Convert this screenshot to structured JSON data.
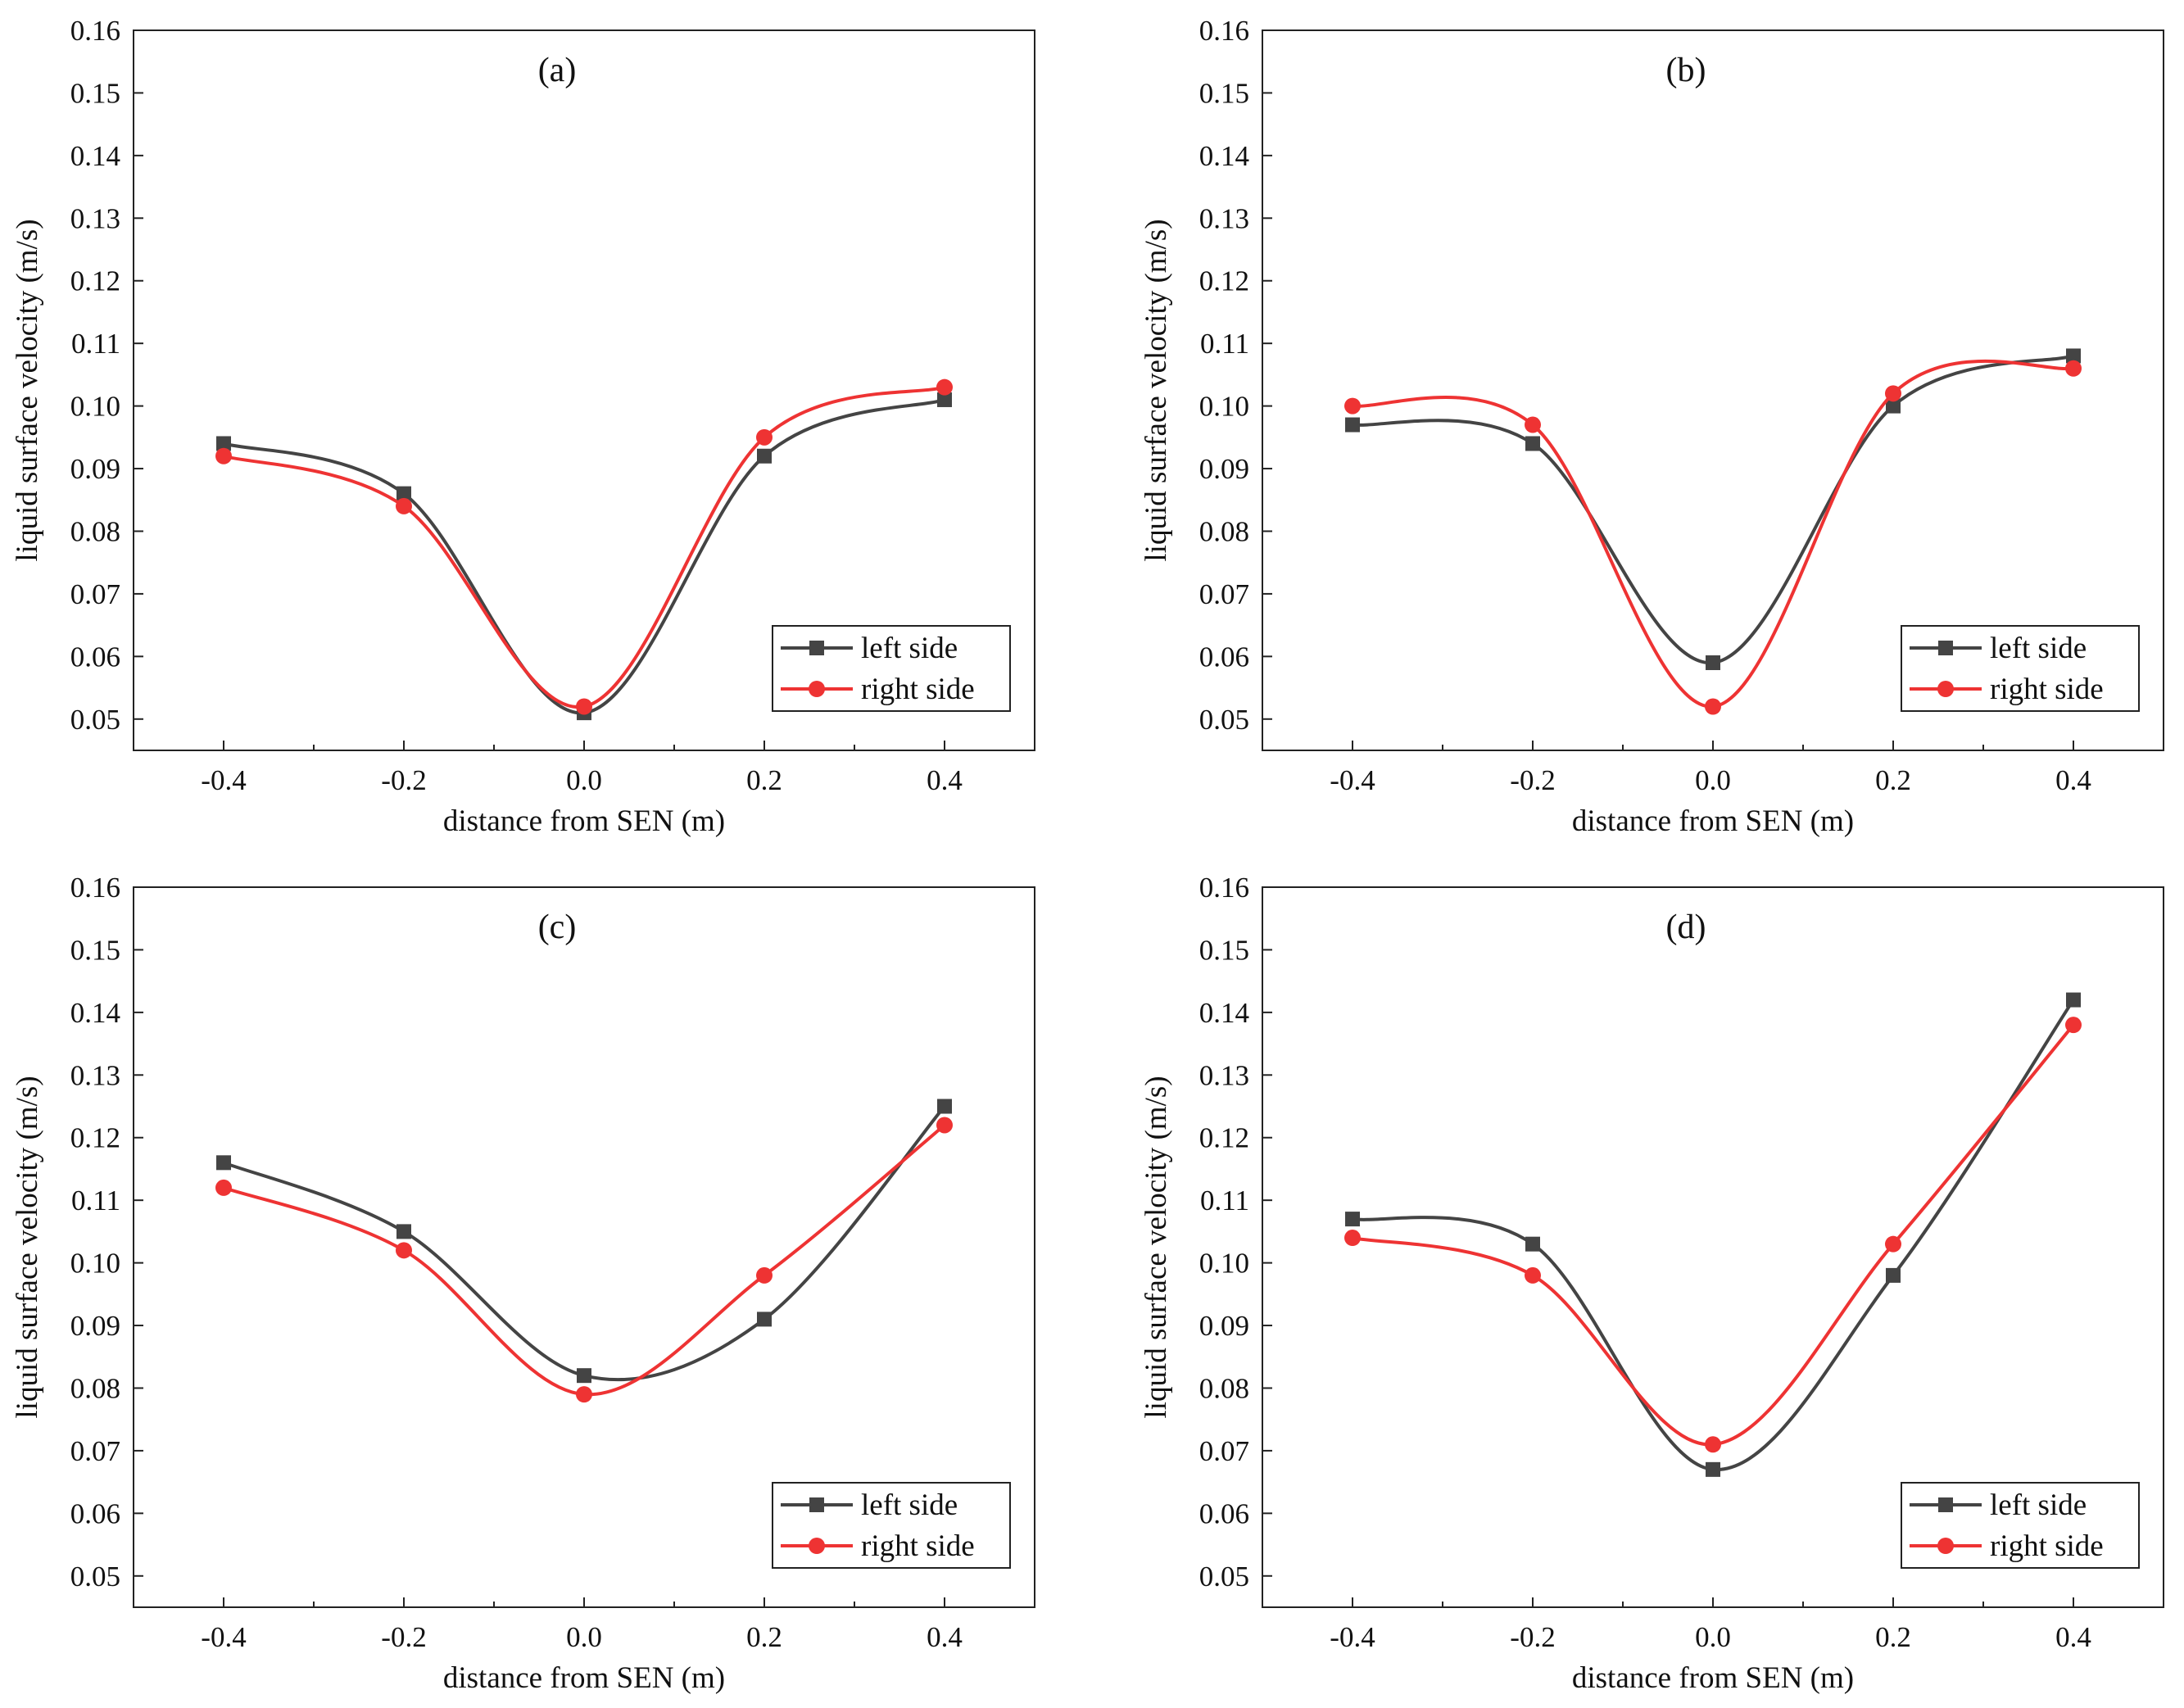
{
  "figure": {
    "colors": {
      "left": "#444444",
      "right": "#ee3333",
      "axis": "#222222"
    }
  },
  "chart_data": [
    {
      "type": "line",
      "panel_label": "(a)",
      "xlabel": "distance from SEN (m)",
      "ylabel": "liquid surface velocity (m/s)",
      "x": [
        -0.4,
        -0.2,
        0.0,
        0.2,
        0.4
      ],
      "x_tick_labels": [
        "-0.4",
        "-0.2",
        "0.0",
        "0.2",
        "0.4"
      ],
      "y_tick_labels": [
        "0.05",
        "0.06",
        "0.07",
        "0.08",
        "0.09",
        "0.10",
        "0.11",
        "0.12",
        "0.13",
        "0.14",
        "0.15",
        "0.16"
      ],
      "xlim": [
        -0.5,
        0.5
      ],
      "ylim": [
        0.045,
        0.16
      ],
      "legend_position": "lower-right",
      "series": [
        {
          "name": "left side",
          "marker": "square",
          "values": [
            0.094,
            0.086,
            0.051,
            0.092,
            0.101
          ]
        },
        {
          "name": "right side",
          "marker": "circle",
          "values": [
            0.092,
            0.084,
            0.052,
            0.095,
            0.103
          ]
        }
      ]
    },
    {
      "type": "line",
      "panel_label": "(b)",
      "xlabel": "distance from SEN (m)",
      "ylabel": "liquid surface velocity (m/s)",
      "x": [
        -0.4,
        -0.2,
        0.0,
        0.2,
        0.4
      ],
      "x_tick_labels": [
        "-0.4",
        "-0.2",
        "0.0",
        "0.2",
        "0.4"
      ],
      "y_tick_labels": [
        "0.05",
        "0.06",
        "0.07",
        "0.08",
        "0.09",
        "0.10",
        "0.11",
        "0.12",
        "0.13",
        "0.14",
        "0.15",
        "0.16"
      ],
      "xlim": [
        -0.5,
        0.5
      ],
      "ylim": [
        0.045,
        0.16
      ],
      "legend_position": "lower-right",
      "series": [
        {
          "name": "left side",
          "marker": "square",
          "values": [
            0.097,
            0.094,
            0.059,
            0.1,
            0.108
          ]
        },
        {
          "name": "right side",
          "marker": "circle",
          "values": [
            0.1,
            0.097,
            0.052,
            0.102,
            0.106
          ]
        }
      ]
    },
    {
      "type": "line",
      "panel_label": "(c)",
      "xlabel": "distance from SEN (m)",
      "ylabel": "liquid surface velocity (m/s)",
      "x": [
        -0.4,
        -0.2,
        0.0,
        0.2,
        0.4
      ],
      "x_tick_labels": [
        "-0.4",
        "-0.2",
        "0.0",
        "0.2",
        "0.4"
      ],
      "y_tick_labels": [
        "0.05",
        "0.06",
        "0.07",
        "0.08",
        "0.09",
        "0.10",
        "0.11",
        "0.12",
        "0.13",
        "0.14",
        "0.15",
        "0.16"
      ],
      "xlim": [
        -0.5,
        0.5
      ],
      "ylim": [
        0.045,
        0.16
      ],
      "legend_position": "lower-right",
      "series": [
        {
          "name": "left side",
          "marker": "square",
          "values": [
            0.116,
            0.105,
            0.082,
            0.091,
            0.125
          ]
        },
        {
          "name": "right side",
          "marker": "circle",
          "values": [
            0.112,
            0.102,
            0.079,
            0.098,
            0.122
          ]
        }
      ]
    },
    {
      "type": "line",
      "panel_label": "(d)",
      "xlabel": "distance from SEN (m)",
      "ylabel": "liquid surface velocity (m/s)",
      "x": [
        -0.4,
        -0.2,
        0.0,
        0.2,
        0.4
      ],
      "x_tick_labels": [
        "-0.4",
        "-0.2",
        "0.0",
        "0.2",
        "0.4"
      ],
      "y_tick_labels": [
        "0.05",
        "0.06",
        "0.07",
        "0.08",
        "0.09",
        "0.10",
        "0.11",
        "0.12",
        "0.13",
        "0.14",
        "0.15",
        "0.16"
      ],
      "xlim": [
        -0.5,
        0.5
      ],
      "ylim": [
        0.045,
        0.16
      ],
      "legend_position": "lower-right",
      "series": [
        {
          "name": "left side",
          "marker": "square",
          "values": [
            0.107,
            0.103,
            0.067,
            0.098,
            0.142
          ]
        },
        {
          "name": "right side",
          "marker": "circle",
          "values": [
            0.104,
            0.098,
            0.071,
            0.103,
            0.138
          ]
        }
      ]
    }
  ]
}
